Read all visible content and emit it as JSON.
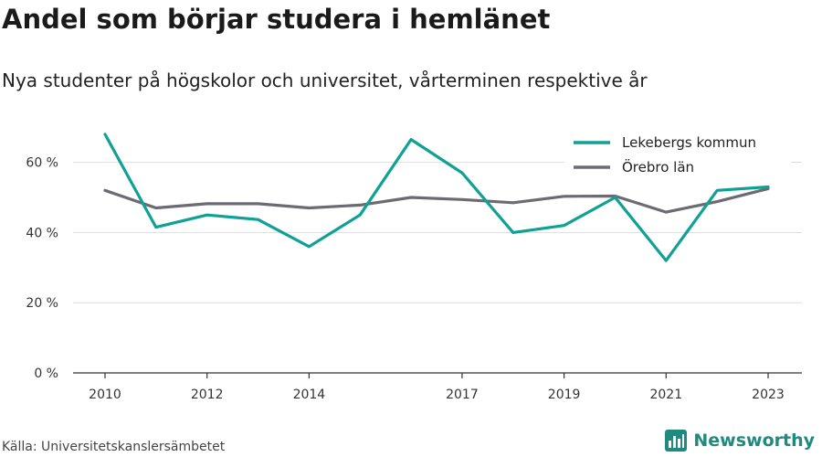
{
  "header": {
    "title": "Andel som börjar studera i hemlänet",
    "subtitle": "Nya studenter på högskolor och universitet, vårterminen respektive år"
  },
  "footer": {
    "source": "Källa: Universitetskanslersämbetet",
    "brand": "Newsworthy",
    "brand_color": "#1f8a7d"
  },
  "chart_data": {
    "type": "line",
    "x": [
      2010,
      2011,
      2012,
      2013,
      2014,
      2015,
      2016,
      2017,
      2018,
      2019,
      2020,
      2021,
      2022,
      2023
    ],
    "x_tick_labels": [
      "2010",
      "2012",
      "2014",
      "2017",
      "2019",
      "2021",
      "2023"
    ],
    "x_tick_values": [
      2010,
      2012,
      2014,
      2017,
      2019,
      2021,
      2023
    ],
    "y_ticks": [
      0,
      20,
      40,
      60
    ],
    "y_tick_labels": [
      "0 %",
      "20 %",
      "40 %",
      "60 %"
    ],
    "ylim": [
      0,
      75
    ],
    "grid": true,
    "legend_position": "top-right",
    "series": [
      {
        "name": "Lekebergs kommun",
        "color": "#0fa193",
        "values": [
          68,
          41.5,
          45,
          43.7,
          36,
          45,
          66.5,
          57,
          40,
          42,
          50,
          32,
          52,
          53
        ]
      },
      {
        "name": "Örebro län",
        "color": "#6b6b73",
        "values": [
          52,
          47,
          48.2,
          48.2,
          47,
          47.8,
          50,
          49.4,
          48.5,
          50.3,
          50.4,
          45.8,
          48.8,
          52.5
        ]
      }
    ]
  }
}
